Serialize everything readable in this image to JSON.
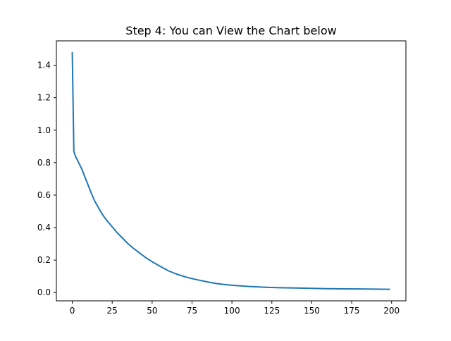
{
  "chart_data": {
    "type": "line",
    "title": "Step 4: You can View the Chart below",
    "xlabel": "",
    "ylabel": "",
    "xlim": [
      -9.95,
      208.95
    ],
    "ylim": [
      -0.051,
      1.55
    ],
    "xticks": [
      0,
      25,
      50,
      75,
      100,
      125,
      150,
      175,
      200
    ],
    "yticks": [
      0.0,
      0.2,
      0.4,
      0.6,
      0.8,
      1.0,
      1.2,
      1.4
    ],
    "grid": false,
    "series": [
      {
        "color": "#1f77b4",
        "x": [
          0,
          1,
          2,
          4,
          6,
          8,
          10,
          12,
          14,
          16,
          18,
          20,
          22,
          25,
          28,
          31,
          35,
          38,
          42,
          46,
          50,
          55,
          60,
          65,
          70,
          75,
          80,
          85,
          90,
          95,
          100,
          110,
          120,
          130,
          140,
          150,
          160,
          170,
          180,
          190,
          199
        ],
        "y": [
          1.48,
          0.87,
          0.84,
          0.8,
          0.76,
          0.71,
          0.66,
          0.61,
          0.565,
          0.53,
          0.495,
          0.465,
          0.44,
          0.405,
          0.37,
          0.34,
          0.3,
          0.275,
          0.245,
          0.215,
          0.19,
          0.162,
          0.135,
          0.115,
          0.099,
          0.086,
          0.075,
          0.065,
          0.056,
          0.05,
          0.045,
          0.038,
          0.033,
          0.03,
          0.028,
          0.026,
          0.024,
          0.023,
          0.022,
          0.021,
          0.02
        ]
      }
    ]
  }
}
